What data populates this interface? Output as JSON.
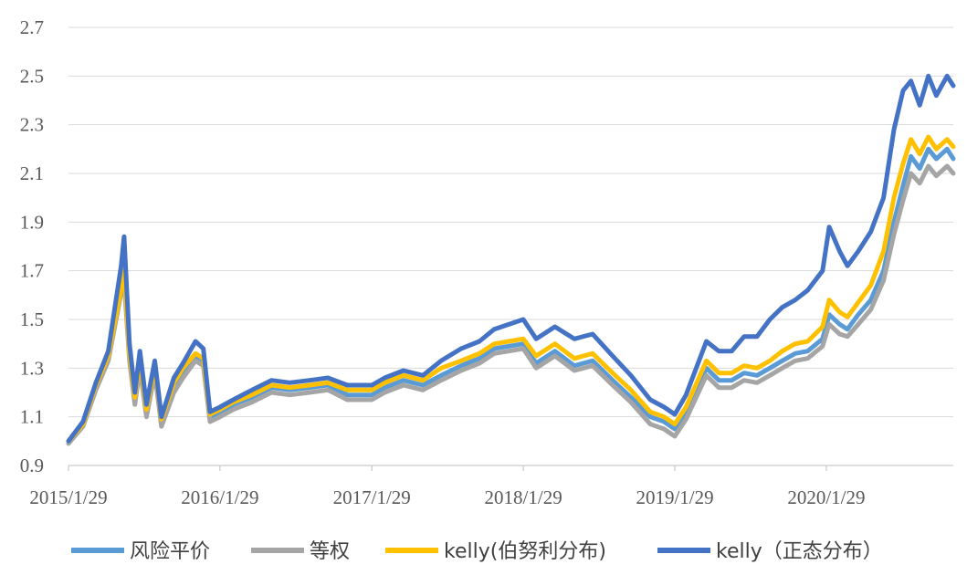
{
  "chart_data": {
    "type": "line",
    "title": "",
    "xlabel": "",
    "ylabel": "",
    "ylim": [
      0.9,
      2.7
    ],
    "yticks": [
      "0.9",
      "1.1",
      "1.3",
      "1.5",
      "1.7",
      "1.9",
      "2.1",
      "2.3",
      "2.5",
      "2.7"
    ],
    "xlim": [
      "2015/1/29",
      "2020/11/30"
    ],
    "xticks": [
      "2015/1/29",
      "2016/1/29",
      "2017/1/29",
      "2018/1/29",
      "2019/1/29",
      "2020/1/29"
    ],
    "grid": true,
    "legend_position": "bottom",
    "series": [
      {
        "name": "风险平价",
        "color": "#5B9BD5",
        "x": [
          "2015/1/29",
          "2015/3/5",
          "2015/4/5",
          "2015/5/5",
          "2015/6/5",
          "2015/6/12",
          "2015/6/25",
          "2015/7/8",
          "2015/7/20",
          "2015/8/5",
          "2015/8/25",
          "2015/9/10",
          "2015/10/10",
          "2015/11/1",
          "2015/12/1",
          "2015/12/20",
          "2016/1/5",
          "2016/1/29",
          "2016/3/1",
          "2016/4/15",
          "2016/6/1",
          "2016/7/15",
          "2016/9/1",
          "2016/10/15",
          "2016/12/1",
          "2017/1/29",
          "2017/3/1",
          "2017/4/15",
          "2017/6/1",
          "2017/7/15",
          "2017/9/1",
          "2017/10/15",
          "2017/11/20",
          "2018/1/29",
          "2018/3/1",
          "2018/4/15",
          "2018/6/1",
          "2018/7/15",
          "2018/9/1",
          "2018/10/15",
          "2018/12/1",
          "2019/1/3",
          "2019/1/29",
          "2019/2/25",
          "2019/4/15",
          "2019/5/15",
          "2019/6/15",
          "2019/7/15",
          "2019/8/15",
          "2019/9/15",
          "2019/10/15",
          "2019/11/15",
          "2019/12/15",
          "2020/1/20",
          "2020/2/5",
          "2020/3/1",
          "2020/3/20",
          "2020/4/15",
          "2020/5/15",
          "2020/6/15",
          "2020/7/10",
          "2020/8/1",
          "2020/8/20",
          "2020/9/10",
          "2020/10/1",
          "2020/10/20",
          "2020/11/15",
          "2020/11/30"
        ],
        "values": [
          1.0,
          1.07,
          1.22,
          1.34,
          1.62,
          1.68,
          1.35,
          1.17,
          1.32,
          1.12,
          1.3,
          1.08,
          1.22,
          1.28,
          1.35,
          1.33,
          1.1,
          1.12,
          1.15,
          1.18,
          1.22,
          1.21,
          1.22,
          1.23,
          1.19,
          1.19,
          1.22,
          1.25,
          1.23,
          1.27,
          1.31,
          1.34,
          1.38,
          1.4,
          1.32,
          1.37,
          1.31,
          1.33,
          1.25,
          1.18,
          1.1,
          1.08,
          1.05,
          1.12,
          1.3,
          1.25,
          1.25,
          1.28,
          1.27,
          1.3,
          1.33,
          1.36,
          1.37,
          1.42,
          1.52,
          1.48,
          1.46,
          1.52,
          1.58,
          1.7,
          1.9,
          2.05,
          2.17,
          2.12,
          2.2,
          2.16,
          2.2,
          2.16
        ]
      },
      {
        "name": "等权",
        "color": "#A5A5A5",
        "x": [
          "2015/1/29",
          "2015/3/5",
          "2015/4/5",
          "2015/5/5",
          "2015/6/5",
          "2015/6/12",
          "2015/6/25",
          "2015/7/8",
          "2015/7/20",
          "2015/8/5",
          "2015/8/25",
          "2015/9/10",
          "2015/10/10",
          "2015/11/1",
          "2015/12/1",
          "2015/12/20",
          "2016/1/5",
          "2016/1/29",
          "2016/3/1",
          "2016/4/15",
          "2016/6/1",
          "2016/7/15",
          "2016/9/1",
          "2016/10/15",
          "2016/12/1",
          "2017/1/29",
          "2017/3/1",
          "2017/4/15",
          "2017/6/1",
          "2017/7/15",
          "2017/9/1",
          "2017/10/15",
          "2017/11/20",
          "2018/1/29",
          "2018/3/1",
          "2018/4/15",
          "2018/6/1",
          "2018/7/15",
          "2018/9/1",
          "2018/10/15",
          "2018/12/1",
          "2019/1/3",
          "2019/1/29",
          "2019/2/25",
          "2019/4/15",
          "2019/5/15",
          "2019/6/15",
          "2019/7/15",
          "2019/8/15",
          "2019/9/15",
          "2019/10/15",
          "2019/11/15",
          "2019/12/15",
          "2020/1/20",
          "2020/2/5",
          "2020/3/1",
          "2020/3/20",
          "2020/4/15",
          "2020/5/15",
          "2020/6/15",
          "2020/7/10",
          "2020/8/1",
          "2020/8/20",
          "2020/9/10",
          "2020/10/1",
          "2020/10/20",
          "2020/11/15",
          "2020/11/30"
        ],
        "values": [
          0.99,
          1.06,
          1.21,
          1.33,
          1.61,
          1.66,
          1.33,
          1.15,
          1.3,
          1.1,
          1.28,
          1.06,
          1.2,
          1.26,
          1.33,
          1.31,
          1.08,
          1.1,
          1.13,
          1.16,
          1.2,
          1.19,
          1.2,
          1.21,
          1.17,
          1.17,
          1.2,
          1.23,
          1.21,
          1.25,
          1.29,
          1.32,
          1.36,
          1.38,
          1.3,
          1.35,
          1.29,
          1.31,
          1.23,
          1.16,
          1.07,
          1.05,
          1.02,
          1.09,
          1.27,
          1.22,
          1.22,
          1.25,
          1.24,
          1.27,
          1.3,
          1.33,
          1.34,
          1.39,
          1.48,
          1.44,
          1.43,
          1.48,
          1.54,
          1.66,
          1.85,
          1.99,
          2.1,
          2.06,
          2.13,
          2.09,
          2.13,
          2.1
        ]
      },
      {
        "name": "kelly(伯努利分布)",
        "color": "#FFC000",
        "x": [
          "2015/1/29",
          "2015/3/5",
          "2015/4/5",
          "2015/5/5",
          "2015/6/5",
          "2015/6/12",
          "2015/6/25",
          "2015/7/8",
          "2015/7/20",
          "2015/8/5",
          "2015/8/25",
          "2015/9/10",
          "2015/10/10",
          "2015/11/1",
          "2015/12/1",
          "2015/12/20",
          "2016/1/5",
          "2016/1/29",
          "2016/3/1",
          "2016/4/15",
          "2016/6/1",
          "2016/7/15",
          "2016/9/1",
          "2016/10/15",
          "2016/12/1",
          "2017/1/29",
          "2017/3/1",
          "2017/4/15",
          "2017/6/1",
          "2017/7/15",
          "2017/9/1",
          "2017/10/15",
          "2017/11/20",
          "2018/1/29",
          "2018/3/1",
          "2018/4/15",
          "2018/6/1",
          "2018/7/15",
          "2018/9/1",
          "2018/10/15",
          "2018/12/1",
          "2019/1/3",
          "2019/1/29",
          "2019/2/25",
          "2019/4/15",
          "2019/5/15",
          "2019/6/15",
          "2019/7/15",
          "2019/8/15",
          "2019/9/15",
          "2019/10/15",
          "2019/11/15",
          "2019/12/15",
          "2020/1/20",
          "2020/2/5",
          "2020/3/1",
          "2020/3/20",
          "2020/4/15",
          "2020/5/15",
          "2020/6/15",
          "2020/7/10",
          "2020/8/1",
          "2020/8/20",
          "2020/9/10",
          "2020/10/1",
          "2020/10/20",
          "2020/11/15",
          "2020/11/30"
        ],
        "values": [
          1.0,
          1.07,
          1.23,
          1.35,
          1.63,
          1.7,
          1.36,
          1.18,
          1.34,
          1.13,
          1.31,
          1.09,
          1.24,
          1.3,
          1.36,
          1.34,
          1.11,
          1.13,
          1.16,
          1.19,
          1.23,
          1.22,
          1.23,
          1.24,
          1.21,
          1.21,
          1.24,
          1.27,
          1.25,
          1.3,
          1.33,
          1.36,
          1.4,
          1.42,
          1.35,
          1.4,
          1.34,
          1.36,
          1.28,
          1.21,
          1.12,
          1.1,
          1.07,
          1.14,
          1.33,
          1.28,
          1.28,
          1.31,
          1.3,
          1.33,
          1.37,
          1.4,
          1.41,
          1.47,
          1.58,
          1.53,
          1.51,
          1.57,
          1.64,
          1.78,
          2.0,
          2.14,
          2.24,
          2.18,
          2.25,
          2.2,
          2.24,
          2.21
        ]
      },
      {
        "name": "kelly（正态分布）",
        "color": "#4472C4",
        "x": [
          "2015/1/29",
          "2015/3/5",
          "2015/4/5",
          "2015/5/5",
          "2015/6/5",
          "2015/6/12",
          "2015/6/25",
          "2015/7/8",
          "2015/7/20",
          "2015/8/5",
          "2015/8/25",
          "2015/9/10",
          "2015/10/10",
          "2015/11/1",
          "2015/12/1",
          "2015/12/20",
          "2016/1/5",
          "2016/1/29",
          "2016/3/1",
          "2016/4/15",
          "2016/6/1",
          "2016/7/15",
          "2016/9/1",
          "2016/10/15",
          "2016/12/1",
          "2017/1/29",
          "2017/3/1",
          "2017/4/15",
          "2017/6/1",
          "2017/7/15",
          "2017/9/1",
          "2017/10/15",
          "2017/11/20",
          "2018/1/29",
          "2018/3/1",
          "2018/4/15",
          "2018/6/1",
          "2018/7/15",
          "2018/9/1",
          "2018/10/15",
          "2018/12/1",
          "2019/1/3",
          "2019/1/29",
          "2019/2/25",
          "2019/4/15",
          "2019/5/15",
          "2019/6/15",
          "2019/7/15",
          "2019/8/15",
          "2019/9/15",
          "2019/10/15",
          "2019/11/15",
          "2019/12/15",
          "2020/1/20",
          "2020/2/5",
          "2020/3/1",
          "2020/3/20",
          "2020/4/15",
          "2020/5/15",
          "2020/6/15",
          "2020/7/10",
          "2020/8/1",
          "2020/8/20",
          "2020/9/10",
          "2020/10/1",
          "2020/10/20",
          "2020/11/15",
          "2020/11/30"
        ],
        "values": [
          1.0,
          1.08,
          1.24,
          1.37,
          1.72,
          1.84,
          1.4,
          1.2,
          1.37,
          1.15,
          1.33,
          1.1,
          1.26,
          1.32,
          1.41,
          1.38,
          1.12,
          1.14,
          1.17,
          1.21,
          1.25,
          1.24,
          1.25,
          1.26,
          1.23,
          1.23,
          1.26,
          1.29,
          1.27,
          1.33,
          1.38,
          1.41,
          1.46,
          1.5,
          1.42,
          1.47,
          1.42,
          1.44,
          1.35,
          1.27,
          1.17,
          1.14,
          1.11,
          1.19,
          1.41,
          1.37,
          1.37,
          1.43,
          1.43,
          1.5,
          1.55,
          1.58,
          1.62,
          1.7,
          1.88,
          1.78,
          1.72,
          1.78,
          1.86,
          2.0,
          2.28,
          2.44,
          2.48,
          2.38,
          2.5,
          2.42,
          2.5,
          2.46
        ]
      }
    ]
  }
}
